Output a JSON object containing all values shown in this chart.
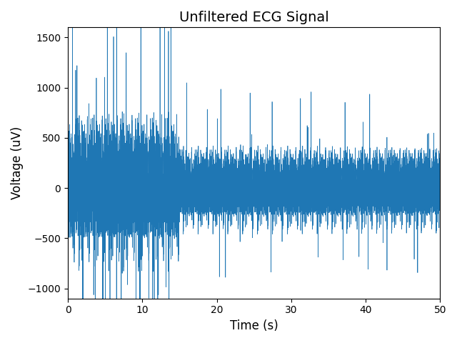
{
  "title": "Unfiltered ECG Signal",
  "xlabel": "Time (s)",
  "ylabel": "Voltage (uV)",
  "xlim": [
    0,
    50
  ],
  "ylim": [
    -1100,
    1600
  ],
  "line_color": "#1f77b4",
  "line_width": 0.5,
  "duration": 50,
  "sample_rate": 500,
  "seed": 7,
  "background_color": "#ffffff",
  "title_fontsize": 14,
  "axis_fontsize": 12,
  "xticks": [
    0,
    10,
    20,
    30,
    40,
    50
  ],
  "yticks": [
    -1000,
    -500,
    0,
    500,
    1000,
    1500
  ]
}
